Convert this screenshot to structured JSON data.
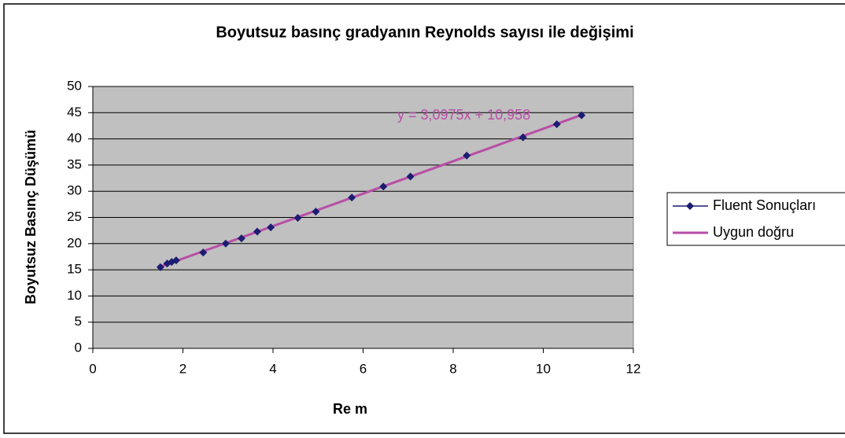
{
  "chart_data": {
    "type": "scatter",
    "title": "Boyutsuz basınç gradyanın Reynolds sayısı ile değişimi",
    "xlabel": "Re m",
    "ylabel": "Boyutsuz Basınç Düşümü",
    "xlim": [
      0,
      12
    ],
    "xticks": [
      0,
      2,
      4,
      6,
      8,
      10,
      12
    ],
    "ylim": [
      0,
      50
    ],
    "yticks": [
      0,
      5,
      10,
      15,
      20,
      25,
      30,
      35,
      40,
      45,
      50
    ],
    "grid": true,
    "legend": "right",
    "series": [
      {
        "name": "Fluent Sonuçları",
        "color": "#1c1c73",
        "marker": "diamond",
        "x": [
          1.5,
          1.65,
          1.75,
          1.85,
          2.45,
          2.95,
          3.3,
          3.65,
          3.95,
          4.55,
          4.95,
          5.75,
          6.45,
          7.05,
          8.3,
          9.55,
          10.3,
          10.85
        ],
        "values": [
          15.5,
          16.2,
          16.5,
          16.8,
          18.3,
          20,
          21,
          22.3,
          23.1,
          24.9,
          26.1,
          28.8,
          30.9,
          32.8,
          36.8,
          40.3,
          42.8,
          44.5
        ]
      },
      {
        "name": "Uygun doğru",
        "color": "#b84ea6",
        "marker": "none",
        "x": [
          1.5,
          10.85
        ],
        "values": [
          15.6,
          44.57
        ]
      }
    ],
    "annotations": [
      {
        "text": "y = 3,0975x + 10,958",
        "color": "#b84ea6"
      }
    ]
  }
}
